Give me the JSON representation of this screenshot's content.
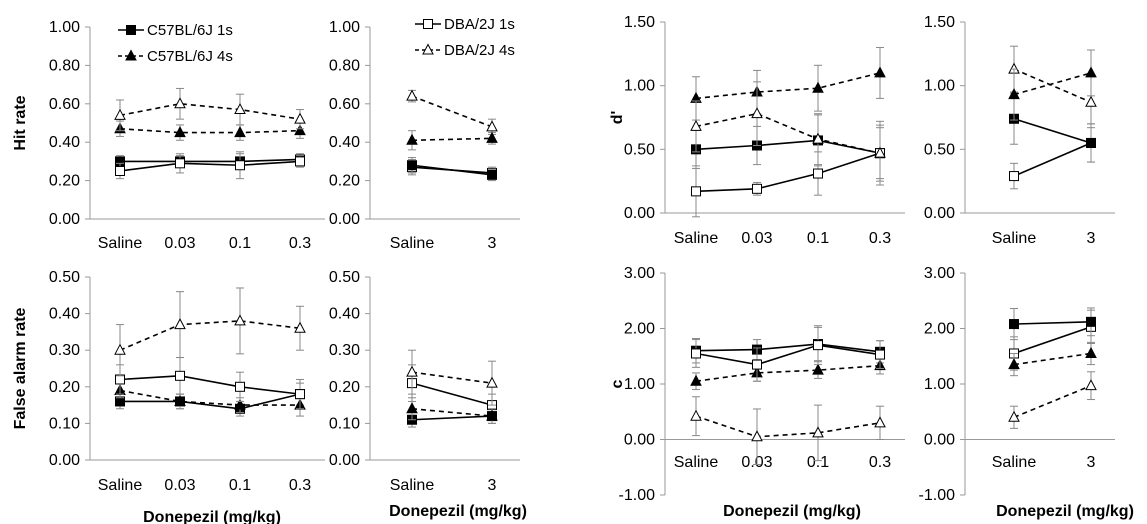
{
  "x_axis_title": "Donepezil (mg/kg)",
  "legend": [
    {
      "series": "c57_1s",
      "label": "C57BL/6J 1s"
    },
    {
      "series": "c57_4s",
      "label": "C57BL/6J 4s"
    },
    {
      "series": "dba_1s",
      "label": "DBA/2J 1s"
    },
    {
      "series": "dba_4s",
      "label": "DBA/2J 4s"
    }
  ],
  "chart_data": [
    {
      "id": "hit_c57",
      "type": "line",
      "ylabel": "Hit rate",
      "categories": [
        "Saline",
        "0.03",
        "0.1",
        "0.3"
      ],
      "ylim": [
        0,
        1
      ],
      "yticks": [
        "0.00",
        "0.20",
        "0.40",
        "0.60",
        "0.80",
        "1.00"
      ],
      "series": [
        {
          "key": "c57_1s",
          "name": "C57BL/6J 1s",
          "values": [
            0.3,
            0.3,
            0.3,
            0.31
          ],
          "err": [
            0.03,
            0.03,
            0.04,
            0.03
          ]
        },
        {
          "key": "c57_4s",
          "name": "C57BL/6J 4s",
          "values": [
            0.47,
            0.45,
            0.45,
            0.46
          ],
          "err": [
            0.04,
            0.04,
            0.04,
            0.04
          ]
        },
        {
          "key": "c57_1s_open",
          "values": [
            0.25,
            0.29,
            0.28,
            0.3
          ],
          "err": [
            0.04,
            0.05,
            0.07,
            0.03
          ]
        },
        {
          "key": "c57_4s_open",
          "values": [
            0.54,
            0.6,
            0.57,
            0.52
          ],
          "err": [
            0.08,
            0.08,
            0.08,
            0.05
          ]
        }
      ]
    },
    {
      "id": "hit_dba",
      "type": "line",
      "ylabel": "",
      "categories": [
        "Saline",
        "3"
      ],
      "ylim": [
        0,
        1
      ],
      "yticks": [
        "0.00",
        "0.20",
        "0.40",
        "0.60",
        "0.80",
        "1.00"
      ],
      "series": [
        {
          "key": "dba_1s",
          "name": "DBA/2J 1s",
          "values": [
            0.27,
            0.24
          ],
          "err": [
            0.04,
            0.03
          ]
        },
        {
          "key": "dba_4s",
          "name": "DBA/2J 4s",
          "values": [
            0.64,
            0.48
          ],
          "err": [
            0.03,
            0.04
          ]
        },
        {
          "key": "dba_1s_filled",
          "values": [
            0.28,
            0.23
          ],
          "err": [
            0.04,
            0.03
          ]
        },
        {
          "key": "dba_4s_filled",
          "values": [
            0.41,
            0.42
          ],
          "err": [
            0.05,
            0.03
          ]
        }
      ]
    },
    {
      "id": "dprime_c57",
      "type": "line",
      "ylabel": "d'",
      "categories": [
        "Saline",
        "0.03",
        "0.1",
        "0.3"
      ],
      "ylim": [
        0,
        1.5
      ],
      "yticks": [
        "0.00",
        "0.50",
        "1.00",
        "1.50"
      ],
      "series": [
        {
          "key": "c57_1s",
          "values": [
            0.5,
            0.53,
            0.57,
            0.47
          ],
          "err": [
            0.15,
            0.15,
            0.2,
            0.22
          ]
        },
        {
          "key": "c57_4s",
          "values": [
            0.9,
            0.95,
            0.98,
            1.1
          ],
          "err": [
            0.17,
            0.17,
            0.18,
            0.2
          ]
        },
        {
          "key": "c57_1s_open",
          "values": [
            0.17,
            0.19,
            0.31,
            0.47
          ],
          "err": [
            0.2,
            0.05,
            0.17,
            0.2
          ]
        },
        {
          "key": "c57_4s_open",
          "values": [
            0.68,
            0.78,
            0.58,
            0.47
          ],
          "err": [
            0.2,
            0.25,
            0.2,
            0.25
          ]
        }
      ]
    },
    {
      "id": "dprime_dba",
      "type": "line",
      "ylabel": "",
      "categories": [
        "Saline",
        "3"
      ],
      "ylim": [
        0,
        1.5
      ],
      "yticks": [
        "0.00",
        "0.50",
        "1.00",
        "1.50"
      ],
      "series": [
        {
          "key": "dba_1s",
          "values": [
            0.29,
            0.55
          ],
          "err": [
            0.1,
            0.15
          ]
        },
        {
          "key": "dba_4s",
          "values": [
            1.13,
            0.87
          ],
          "err": [
            0.18,
            0.2
          ]
        },
        {
          "key": "dba_1s_filled",
          "values": [
            0.74,
            0.55
          ],
          "err": [
            0.2,
            0.15
          ]
        },
        {
          "key": "dba_4s_filled",
          "values": [
            0.93,
            1.1
          ],
          "err": [
            0.2,
            0.18
          ]
        }
      ]
    },
    {
      "id": "fa_c57",
      "type": "line",
      "ylabel": "False alarm rate",
      "categories": [
        "Saline",
        "0.03",
        "0.1",
        "0.3"
      ],
      "ylim": [
        0,
        0.5
      ],
      "yticks": [
        "0.00",
        "0.10",
        "0.20",
        "0.30",
        "0.40",
        "0.50"
      ],
      "series": [
        {
          "key": "c57_1s",
          "values": [
            0.16,
            0.16,
            0.14,
            0.18
          ],
          "err": [
            0.02,
            0.02,
            0.02,
            0.03
          ]
        },
        {
          "key": "c57_4s",
          "values": [
            0.19,
            0.16,
            0.15,
            0.15
          ],
          "err": [
            0.02,
            0.02,
            0.02,
            0.03
          ]
        },
        {
          "key": "c57_1s_open",
          "values": [
            0.22,
            0.23,
            0.2,
            0.18
          ],
          "err": [
            0.04,
            0.05,
            0.04,
            0.04
          ]
        },
        {
          "key": "c57_4s_open",
          "values": [
            0.3,
            0.37,
            0.38,
            0.36
          ],
          "err": [
            0.07,
            0.09,
            0.09,
            0.06
          ]
        }
      ]
    },
    {
      "id": "fa_dba",
      "type": "line",
      "ylabel": "",
      "categories": [
        "Saline",
        "3"
      ],
      "ylim": [
        0,
        0.5
      ],
      "yticks": [
        "0.00",
        "0.10",
        "0.20",
        "0.30",
        "0.40",
        "0.50"
      ],
      "series": [
        {
          "key": "dba_1s",
          "values": [
            0.21,
            0.15
          ],
          "err": [
            0.05,
            0.03
          ]
        },
        {
          "key": "dba_4s",
          "values": [
            0.24,
            0.21
          ],
          "err": [
            0.06,
            0.06
          ]
        },
        {
          "key": "dba_1s_filled",
          "values": [
            0.11,
            0.12
          ],
          "err": [
            0.02,
            0.02
          ]
        },
        {
          "key": "dba_4s_filled",
          "values": [
            0.14,
            0.12
          ],
          "err": [
            0.03,
            0.02
          ]
        }
      ]
    },
    {
      "id": "c_c57",
      "type": "line",
      "ylabel": "c",
      "categories": [
        "Saline",
        "0.03",
        "0.1",
        "0.3"
      ],
      "ylim": [
        -1,
        3
      ],
      "yticks": [
        "-1.00",
        "0.00",
        "1.00",
        "2.00",
        "3.00"
      ],
      "series": [
        {
          "key": "c57_1s",
          "values": [
            1.6,
            1.62,
            1.72,
            1.58
          ],
          "err": [
            0.22,
            0.18,
            0.3,
            0.2
          ]
        },
        {
          "key": "c57_4s",
          "values": [
            1.05,
            1.2,
            1.25,
            1.33
          ],
          "err": [
            0.15,
            0.15,
            0.15,
            0.15
          ]
        },
        {
          "key": "c57_1s_open",
          "values": [
            1.55,
            1.35,
            1.7,
            1.53
          ],
          "err": [
            0.25,
            0.3,
            0.35,
            0.25
          ]
        },
        {
          "key": "c57_4s_open",
          "values": [
            0.42,
            0.05,
            0.12,
            0.3
          ],
          "err": [
            0.35,
            0.5,
            0.5,
            0.3
          ]
        }
      ]
    },
    {
      "id": "c_dba",
      "type": "line",
      "ylabel": "",
      "categories": [
        "Saline",
        "3"
      ],
      "ylim": [
        -1,
        3
      ],
      "yticks": [
        "-1.00",
        "0.00",
        "1.00",
        "2.00",
        "3.00"
      ],
      "series": [
        {
          "key": "dba_1s",
          "values": [
            1.55,
            2.03
          ],
          "err": [
            0.3,
            0.3
          ]
        },
        {
          "key": "dba_4s",
          "values": [
            0.4,
            0.97
          ],
          "err": [
            0.2,
            0.25
          ]
        },
        {
          "key": "dba_1s_filled",
          "values": [
            2.08,
            2.12
          ],
          "err": [
            0.28,
            0.25
          ]
        },
        {
          "key": "dba_4s_filled",
          "values": [
            1.35,
            1.55
          ],
          "err": [
            0.2,
            0.2
          ]
        }
      ]
    }
  ]
}
